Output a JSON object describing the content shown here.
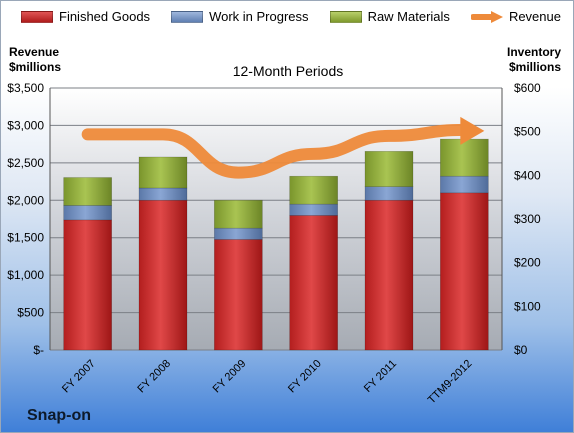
{
  "legend": {
    "finished_goods": "Finished Goods",
    "wip": "Work in Progress",
    "raw": "Raw Materials",
    "revenue": "Revenue"
  },
  "left_axis_title": [
    "Revenue",
    "$millions"
  ],
  "right_axis_title": [
    "Inventory",
    "$millions"
  ],
  "subtitle": "12-Month Periods",
  "company": "Snap-on",
  "colors": {
    "finished_goods": "#c62828",
    "wip": "#6f8fc2",
    "raw": "#8fa83a",
    "revenue": "#ee8a3a"
  },
  "chart_data": {
    "type": "bar",
    "stacked": true,
    "categories": [
      "FY 2007",
      "FY 2008",
      "FY 2009",
      "FY 2010",
      "FY 2011",
      "TTM9-2012"
    ],
    "series": [
      {
        "name": "Finished Goods",
        "axis": "right",
        "values": [
          298,
          343,
          253,
          308,
          343,
          360
        ]
      },
      {
        "name": "Work in Progress",
        "axis": "right",
        "values": [
          33,
          28,
          26,
          26,
          31,
          38
        ]
      },
      {
        "name": "Raw Materials",
        "axis": "right",
        "values": [
          64,
          71,
          64,
          64,
          81,
          85
        ]
      },
      {
        "name": "Revenue",
        "type": "line",
        "axis": "left",
        "values": [
          2880,
          2880,
          2370,
          2620,
          2860,
          2940
        ]
      }
    ],
    "left_axis": {
      "ylim": [
        0,
        3500
      ],
      "ticks": [
        "$-",
        "$500",
        "$1,000",
        "$1,500",
        "$2,000",
        "$2,500",
        "$3,000",
        "$3,500"
      ]
    },
    "right_axis": {
      "ylim": [
        0,
        600
      ],
      "ticks": [
        "$0",
        "$100",
        "$200",
        "$300",
        "$400",
        "$500",
        "$600"
      ]
    },
    "grid": true,
    "legend_position": "top"
  }
}
